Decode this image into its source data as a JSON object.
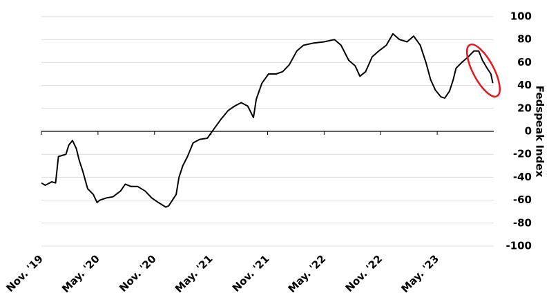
{
  "chart_data": {
    "type": "line",
    "y_label": "Fedspeak Index",
    "x": [
      0,
      0.4,
      1.1,
      1.5,
      1.8,
      2.6,
      2.9,
      3.3,
      3.7,
      4.0,
      4.4,
      4.9,
      5.5,
      5.9,
      6.2,
      6.9,
      7.6,
      8.4,
      8.9,
      9.5,
      10.2,
      11.0,
      11.7,
      12.4,
      13.2,
      13.5,
      14.3,
      14.6,
      15.0,
      15.5,
      16.1,
      16.8,
      17.6,
      18.3,
      19.0,
      19.8,
      20.5,
      21.2,
      21.9,
      22.5,
      22.8,
      23.4,
      24.1,
      24.9,
      25.6,
      26.3,
      27.1,
      27.8,
      28.9,
      30.0,
      31.1,
      31.8,
      32.6,
      33.3,
      33.8,
      34.4,
      35.1,
      35.8,
      36.6,
      37.3,
      38.0,
      38.8,
      39.5,
      40.2,
      40.8,
      41.3,
      41.8,
      42.4,
      42.8,
      43.3,
      43.7,
      44.0,
      44.6,
      45.3,
      45.9,
      46.4,
      46.8,
      47.3,
      47.7,
      47.9
    ],
    "series": [
      {
        "color": "#000000",
        "values": [
          -45,
          -47,
          -44,
          -45,
          -22,
          -20,
          -12,
          -8,
          -15,
          -25,
          -35,
          -50,
          -55,
          -62,
          -60,
          -58,
          -57,
          -52,
          -46,
          -48,
          -48,
          -52,
          -58,
          -62,
          -66,
          -65,
          -55,
          -40,
          -30,
          -22,
          -10,
          -7,
          -6,
          2,
          10,
          18,
          22,
          25,
          22,
          12,
          28,
          42,
          50,
          50,
          52,
          58,
          70,
          75,
          77,
          78,
          80,
          75,
          62,
          57,
          48,
          52,
          65,
          70,
          75,
          85,
          80,
          78,
          83,
          75,
          60,
          45,
          36,
          30,
          29,
          35,
          45,
          55,
          60,
          65,
          70,
          70,
          62,
          55,
          50,
          42
        ]
      }
    ],
    "xlim": [
      0,
      48
    ],
    "xticks": [
      {
        "value": 0,
        "label": "Nov. '19"
      },
      {
        "value": 6,
        "label": "May. '20"
      },
      {
        "value": 12,
        "label": "Nov. '20"
      },
      {
        "value": 18,
        "label": "May. '21"
      },
      {
        "value": 24,
        "label": "Nov. '21"
      },
      {
        "value": 30,
        "label": "May. '22"
      },
      {
        "value": 36,
        "label": "Nov. '22"
      },
      {
        "value": 42,
        "label": "May. '23"
      }
    ],
    "ylim": [
      -100,
      100
    ],
    "yticks": [
      -100,
      -80,
      -60,
      -40,
      -20,
      0,
      20,
      40,
      60,
      80,
      100
    ],
    "grid": true
  }
}
